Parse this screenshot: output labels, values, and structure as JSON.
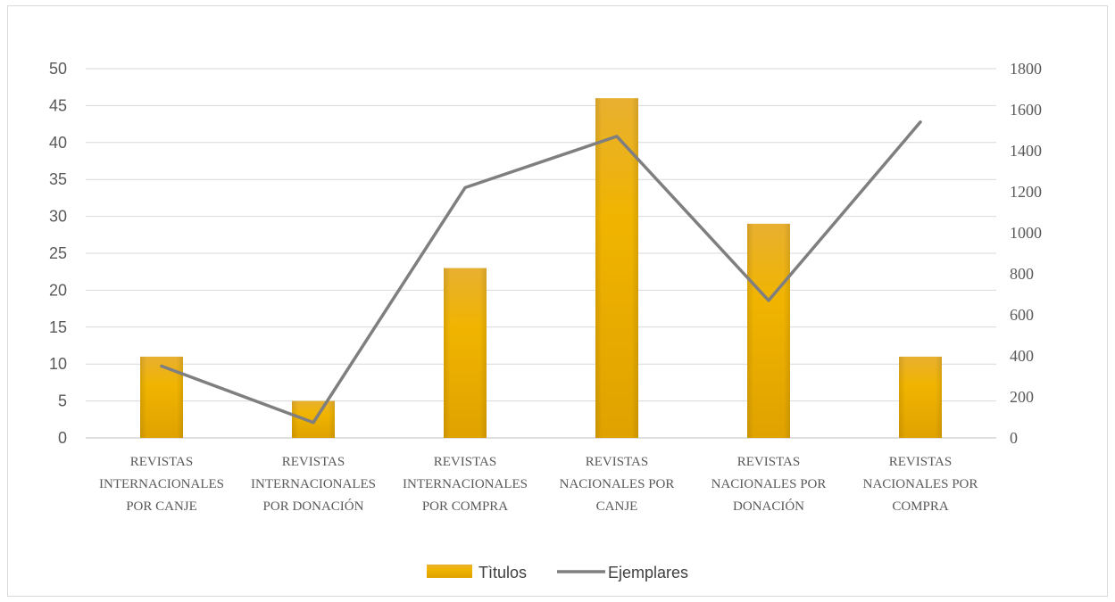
{
  "chart_data": {
    "type": "bar",
    "categories": [
      [
        "REVISTAS",
        "INTERNACIONALES",
        "POR CANJE"
      ],
      [
        "REVISTAS",
        "INTERNACIONALES",
        "POR DONACIÓN"
      ],
      [
        "REVISTAS",
        "INTERNACIONALES",
        "POR COMPRA"
      ],
      [
        "REVISTAS",
        "NACIONALES POR",
        "CANJE"
      ],
      [
        "REVISTAS",
        "NACIONALES POR",
        "DONACIÓN"
      ],
      [
        "REVISTAS",
        "NACIONALES POR",
        "COMPRA"
      ]
    ],
    "series": [
      {
        "name": "Tìtulos",
        "type": "bar",
        "axis": "left",
        "color": "#F0B400",
        "values": [
          11,
          5,
          23,
          46,
          29,
          11
        ]
      },
      {
        "name": "Ejemplares",
        "type": "line",
        "axis": "right",
        "color": "#7F7F7F",
        "values": [
          350,
          75,
          1220,
          1470,
          670,
          1540
        ]
      }
    ],
    "y_left": {
      "min": 0,
      "max": 50,
      "step": 5,
      "ticks": [
        "0",
        "5",
        "10",
        "15",
        "20",
        "25",
        "30",
        "35",
        "40",
        "45",
        "50"
      ]
    },
    "y_right": {
      "min": 0,
      "max": 1800,
      "step": 200,
      "ticks": [
        "0",
        "200",
        "400",
        "600",
        "800",
        "1000",
        "1200",
        "1400",
        "1600",
        "1800"
      ]
    },
    "grid": true,
    "legend": {
      "position": "bottom",
      "items": [
        "Tìtulos",
        "Ejemplares"
      ]
    }
  }
}
